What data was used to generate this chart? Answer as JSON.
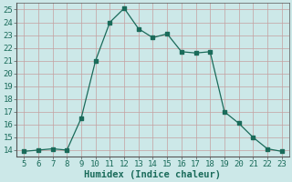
{
  "x": [
    5,
    6,
    7,
    8,
    9,
    10,
    11,
    12,
    13,
    14,
    15,
    16,
    17,
    18,
    19,
    20,
    21,
    22,
    23
  ],
  "y": [
    13.9,
    14.0,
    14.1,
    14.0,
    16.5,
    21.0,
    24.0,
    25.1,
    23.5,
    22.8,
    23.1,
    21.7,
    21.6,
    21.7,
    17.0,
    16.1,
    15.0,
    14.1,
    13.9
  ],
  "line_color": "#1a6b5a",
  "bg_color": "#cce8e8",
  "grid_color_v": "#c4a0a0",
  "grid_color_h": "#c4a0a0",
  "xlabel": "Humidex (Indice chaleur)",
  "xlim": [
    4.5,
    23.5
  ],
  "ylim": [
    13.5,
    25.5
  ],
  "xticks": [
    5,
    6,
    7,
    8,
    9,
    10,
    11,
    12,
    13,
    14,
    15,
    16,
    17,
    18,
    19,
    20,
    21,
    22,
    23
  ],
  "yticks": [
    14,
    15,
    16,
    17,
    18,
    19,
    20,
    21,
    22,
    23,
    24,
    25
  ],
  "tick_fontsize": 6.5,
  "xlabel_fontsize": 7.5
}
